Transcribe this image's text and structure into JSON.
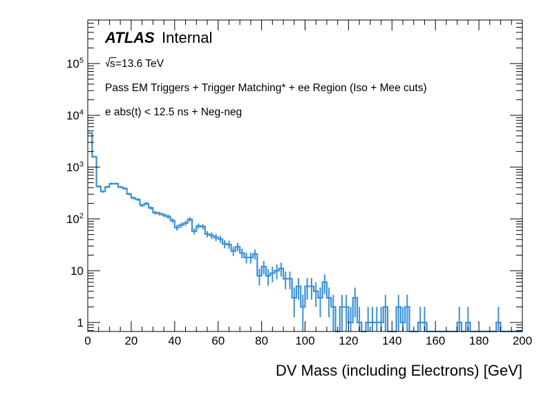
{
  "chart_data": {
    "type": "histogram",
    "title": "",
    "xlabel": "DV Mass (including Electrons) [GeV]",
    "ylabel": "",
    "xlim": [
      0,
      200
    ],
    "ylim": [
      0.67,
      690000
    ],
    "yscale": "log",
    "grid": false,
    "bin_width": 2,
    "x_ticks": [
      0,
      20,
      40,
      60,
      80,
      100,
      120,
      140,
      160,
      180,
      200
    ],
    "x_tick_labels": [
      "0",
      "20",
      "40",
      "60",
      "80",
      "100",
      "120",
      "140",
      "160",
      "180",
      "200"
    ],
    "y_ticks": [
      1,
      10,
      100,
      1000,
      10000,
      100000
    ],
    "y_tick_labels": [
      {
        "base": "1",
        "exp": ""
      },
      {
        "base": "10",
        "exp": ""
      },
      {
        "base": "10",
        "exp": "2"
      },
      {
        "base": "10",
        "exp": "3"
      },
      {
        "base": "10",
        "exp": "4"
      },
      {
        "base": "10",
        "exp": "5"
      }
    ],
    "series": [
      {
        "name": "data",
        "color": "#3b8fd9",
        "error_bars": true,
        "bin_edges_start": 0,
        "values": [
          4540,
          1585,
          423,
          338,
          414,
          479,
          479,
          414,
          388,
          303,
          254,
          237,
          183,
          198,
          163,
          132,
          127,
          119,
          111,
          93,
          68,
          76,
          83,
          98,
          58,
          73,
          71,
          51,
          48,
          44,
          41,
          33,
          32,
          24,
          29,
          22,
          18,
          18,
          21,
          8,
          12,
          8,
          9,
          10,
          11,
          7,
          7,
          3,
          5,
          2,
          5,
          5,
          4,
          3,
          6,
          3,
          2,
          0,
          2,
          2,
          1,
          3,
          1,
          0,
          1,
          1,
          1,
          1,
          2,
          0,
          0,
          2,
          1,
          2,
          0,
          0,
          1,
          1,
          0,
          0,
          0,
          0,
          0,
          0,
          0,
          1,
          0,
          1,
          0,
          0,
          0,
          0,
          0,
          0,
          1,
          0,
          0,
          0,
          0,
          0
        ]
      }
    ],
    "annotations": {
      "experiment": "ATLAS",
      "status": "Internal",
      "energy_sqrt": "s",
      "energy_value": "=13.6 TeV",
      "selection_line1": "Pass EM Triggers + Trigger Matching* + ee Region (Iso + Mee cuts)",
      "selection_line2": "e abs(t) < 12.5 ns + Neg-neg"
    }
  }
}
